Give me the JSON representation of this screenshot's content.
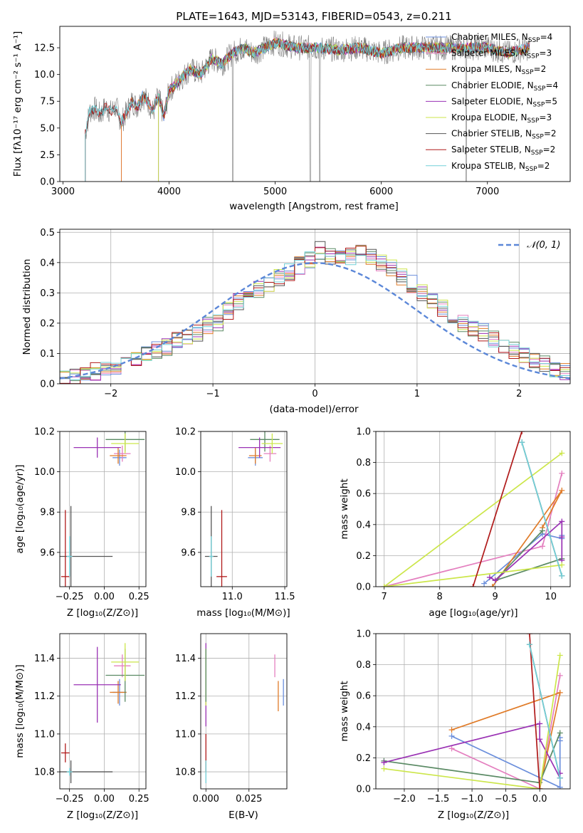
{
  "chart_data": [
    {
      "id": "spectrum",
      "type": "line",
      "title": "PLATE=1643, MJD=53143, FIBERID=0543, z=0.211",
      "xlabel": "wavelength [Angstrom, rest frame]",
      "ylabel": "Flux [fλ10⁻¹⁷ erg cm⁻² s⁻¹ A⁻¹]",
      "xlim": [
        2970,
        7780
      ],
      "ylim": [
        0,
        14.5
      ],
      "xticks": [
        "3000",
        "4000",
        "5000",
        "6000",
        "7000"
      ],
      "xtick_values": [
        3000,
        4000,
        5000,
        6000,
        7000
      ],
      "yticks": [
        "0.0",
        "2.5",
        "5.0",
        "7.5",
        "10.0",
        "12.5"
      ],
      "ytick_values": [
        0,
        2.5,
        5,
        7.5,
        10,
        12.5
      ],
      "grid": false,
      "legend_position": "top-right",
      "observed_spectrum": {
        "x": [
          3210,
          3250,
          3300,
          3350,
          3400,
          3450,
          3500,
          3550,
          3600,
          3650,
          3700,
          3750,
          3800,
          3850,
          3900,
          3950,
          4000,
          4100,
          4200,
          4300,
          4400,
          4500,
          4600,
          4700,
          4800,
          4900,
          5000,
          5200,
          5400,
          5600,
          5800,
          6000,
          6200,
          6400,
          6600,
          6800,
          7000,
          7200,
          7400
        ],
        "y": [
          4.5,
          6.5,
          6.8,
          6.2,
          7.0,
          6.5,
          7.0,
          5.5,
          6.5,
          7.5,
          7.0,
          8.0,
          7.5,
          6.5,
          8.0,
          6.0,
          8.5,
          9.5,
          10.5,
          10.0,
          11.5,
          11.0,
          12.0,
          12.5,
          12.0,
          12.5,
          13.0,
          12.5,
          12.5,
          12.3,
          12.5,
          12.0,
          12.5,
          12.5,
          12.5,
          12.5,
          12.5,
          12.0,
          12.5
        ]
      },
      "series": [
        {
          "name": "Chabrier MILES, N<sub>SSP</sub>=4",
          "color": "#6b8fdc",
          "start": 3550
        },
        {
          "name": "Salpeter MILES, N<sub>SSP</sub>=3",
          "color": "#e47fbf",
          "start": 3550
        },
        {
          "name": "Kroupa MILES, N<sub>SSP</sub>=2",
          "color": "#e07b28",
          "start": 3550
        },
        {
          "name": "Chabrier ELODIE, N<sub>SSP</sub>=4",
          "color": "#5a8a64",
          "start": 3900
        },
        {
          "name": "Salpeter ELODIE, N<sub>SSP</sub>=5",
          "color": "#9a32b4",
          "start": 3900
        },
        {
          "name": "Kroupa ELODIE, N<sub>SSP</sub>=3",
          "color": "#cce64a",
          "start": 3900
        },
        {
          "name": "Chabrier STELIB, N<sub>SSP</sub>=2",
          "color": "#555555",
          "start": 3210
        },
        {
          "name": "Salpeter STELIB, N<sub>SSP</sub>=2",
          "color": "#b01a1a",
          "start": 3210
        },
        {
          "name": "Kroupa STELIB, N<sub>SSP</sub>=2",
          "color": "#72d0d8",
          "start": 3210
        }
      ]
    },
    {
      "id": "residuals",
      "type": "line",
      "xlabel": "(data-model)/error",
      "ylabel": "Normed distribution",
      "xlim": [
        -2.5,
        2.5
      ],
      "ylim": [
        0,
        0.51
      ],
      "xticks": [
        "−2",
        "−1",
        "0",
        "1",
        "2"
      ],
      "xtick_values": [
        -2,
        -1,
        0,
        1,
        2
      ],
      "yticks": [
        "0.0",
        "0.1",
        "0.2",
        "0.3",
        "0.4",
        "0.5"
      ],
      "ytick_values": [
        0,
        0.1,
        0.2,
        0.3,
        0.4,
        0.5
      ],
      "grid": true,
      "legend": "𝒩(0, 1)",
      "legend_position": "top-right",
      "gaussian": {
        "mean": 0,
        "sigma": 1,
        "color": "#5b87d8"
      },
      "histogram_bins": [
        -2.5,
        -2.4,
        -2.3,
        -2.2,
        -2.1,
        -2.0,
        -1.9,
        -1.8,
        -1.7,
        -1.6,
        -1.5,
        -1.4,
        -1.3,
        -1.2,
        -1.1,
        -1.0,
        -0.9,
        -0.8,
        -0.7,
        -0.6,
        -0.5,
        -0.4,
        -0.3,
        -0.2,
        -0.1,
        0.0,
        0.1,
        0.2,
        0.3,
        0.4,
        0.5,
        0.6,
        0.7,
        0.8,
        0.9,
        1.0,
        1.1,
        1.2,
        1.3,
        1.4,
        1.5,
        1.6,
        1.7,
        1.8,
        1.9,
        2.0,
        2.1,
        2.2,
        2.3,
        2.4,
        2.5
      ],
      "histogram_base": [
        0.02,
        0.025,
        0.03,
        0.04,
        0.05,
        0.06,
        0.07,
        0.08,
        0.1,
        0.11,
        0.12,
        0.14,
        0.15,
        0.17,
        0.19,
        0.2,
        0.24,
        0.27,
        0.29,
        0.31,
        0.33,
        0.35,
        0.37,
        0.39,
        0.41,
        0.44,
        0.42,
        0.41,
        0.42,
        0.43,
        0.42,
        0.4,
        0.38,
        0.35,
        0.33,
        0.3,
        0.27,
        0.25,
        0.22,
        0.2,
        0.18,
        0.17,
        0.15,
        0.13,
        0.11,
        0.09,
        0.08,
        0.07,
        0.05,
        0.04
      ]
    },
    {
      "id": "age-vs-z",
      "type": "scatter",
      "xlabel": "Z [log₁₀(Z/Z⊙)]",
      "ylabel": "age  [log₁₀(age/yr)]",
      "xlim": [
        -0.32,
        0.3
      ],
      "ylim": [
        9.43,
        10.2
      ],
      "xticks": [
        "−0.25",
        "0.00",
        "0.25"
      ],
      "xtick_values": [
        -0.25,
        0,
        0.25
      ],
      "yticks": [
        "9.6",
        "9.8",
        "10.0",
        "10.2"
      ],
      "ytick_values": [
        9.6,
        9.8,
        10.0,
        10.2
      ],
      "grid": true,
      "points": [
        {
          "x": 0.11,
          "y": 10.07,
          "ex": 0.05,
          "ey": 0.04,
          "color": "#6b8fdc"
        },
        {
          "x": 0.13,
          "y": 10.09,
          "ex": 0.06,
          "ey": 0.04,
          "color": "#e47fbf"
        },
        {
          "x": 0.1,
          "y": 10.08,
          "ex": 0.06,
          "ey": 0.04,
          "color": "#e07b28"
        },
        {
          "x": 0.15,
          "y": 10.16,
          "ex": 0.14,
          "ey": 0.06,
          "color": "#5a8a64"
        },
        {
          "x": -0.05,
          "y": 10.12,
          "ex": 0.17,
          "ey": 0.05,
          "color": "#9a32b4"
        },
        {
          "x": 0.15,
          "y": 10.14,
          "ex": 0.1,
          "ey": 0.05,
          "color": "#cce64a"
        },
        {
          "x": -0.24,
          "y": 9.58,
          "ex": 0.3,
          "ey": 0.25,
          "color": "#555555"
        },
        {
          "x": -0.28,
          "y": 9.48,
          "ex": 0.03,
          "ey": 0.33,
          "color": "#b01a1a"
        },
        {
          "x": -0.25,
          "y": 9.58,
          "ex": 0.02,
          "ey": 0.1,
          "color": "#72d0d8"
        }
      ]
    },
    {
      "id": "age-vs-mass",
      "type": "scatter",
      "xlabel": "mass [log₁₀(M/M⊙)]",
      "ylabel": "",
      "xlim": [
        10.7,
        11.52
      ],
      "ylim": [
        9.43,
        10.2
      ],
      "xticks": [
        "11.0",
        "11.5"
      ],
      "xtick_values": [
        11.0,
        11.5
      ],
      "yticks": [
        "9.6",
        "9.8",
        "10.0",
        "10.2"
      ],
      "ytick_values": [
        9.6,
        9.8,
        10.0,
        10.2
      ],
      "grid": true,
      "points": [
        {
          "x": 11.22,
          "y": 10.07,
          "ex": 0.07,
          "ey": 0.04,
          "color": "#6b8fdc"
        },
        {
          "x": 11.36,
          "y": 10.09,
          "ex": 0.06,
          "ey": 0.04,
          "color": "#e47fbf"
        },
        {
          "x": 11.22,
          "y": 10.08,
          "ex": 0.06,
          "ey": 0.04,
          "color": "#e07b28"
        },
        {
          "x": 11.31,
          "y": 10.16,
          "ex": 0.14,
          "ey": 0.06,
          "color": "#5a8a64"
        },
        {
          "x": 11.26,
          "y": 10.12,
          "ex": 0.2,
          "ey": 0.05,
          "color": "#9a32b4"
        },
        {
          "x": 11.38,
          "y": 10.14,
          "ex": 0.1,
          "ey": 0.05,
          "color": "#cce64a"
        },
        {
          "x": 10.8,
          "y": 9.58,
          "ex": 0.06,
          "ey": 0.25,
          "color": "#555555"
        },
        {
          "x": 10.9,
          "y": 9.48,
          "ex": 0.05,
          "ey": 0.33,
          "color": "#b01a1a"
        },
        {
          "x": 10.8,
          "y": 9.58,
          "ex": 0.02,
          "ey": 0.1,
          "color": "#72d0d8"
        }
      ]
    },
    {
      "id": "weight-vs-age",
      "type": "line",
      "xlabel": "age  [log₁₀(age/yr)]",
      "ylabel": "mass weight",
      "xlim": [
        6.85,
        10.35
      ],
      "ylim": [
        0,
        1.0
      ],
      "xticks": [
        "7",
        "8",
        "9",
        "10"
      ],
      "xtick_values": [
        7,
        8,
        9,
        10
      ],
      "yticks": [
        "0.0",
        "0.2",
        "0.4",
        "0.6",
        "0.8",
        "1.0"
      ],
      "ytick_values": [
        0,
        0.2,
        0.4,
        0.6,
        0.8,
        1.0
      ],
      "grid": true,
      "series": [
        {
          "color": "#6b8fdc",
          "x": [
            8.8,
            9.85,
            10.2,
            10.2
          ],
          "y": [
            0.02,
            0.34,
            0.31,
            0.33
          ]
        },
        {
          "color": "#e47fbf",
          "x": [
            7.0,
            9.85,
            10.2
          ],
          "y": [
            0.0,
            0.26,
            0.73
          ]
        },
        {
          "color": "#e07b28",
          "x": [
            9.85,
            10.2,
            8.95
          ],
          "y": [
            0.38,
            0.62,
            0.0
          ]
        },
        {
          "color": "#5a8a64",
          "x": [
            10.2,
            9.0,
            9.85
          ],
          "y": [
            0.18,
            0.04,
            0.36
          ]
        },
        {
          "color": "#9a32b4",
          "x": [
            8.9,
            9.0,
            10.2,
            10.2,
            10.2
          ],
          "y": [
            0.06,
            0.04,
            0.42,
            0.17,
            0.32
          ]
        },
        {
          "color": "#cce64a",
          "x": [
            10.2,
            7.0,
            10.2
          ],
          "y": [
            0.86,
            0.0,
            0.14
          ]
        },
        {
          "color": "#555555",
          "x": [
            9.48,
            10.2
          ],
          "y": [
            0.93,
            0.07
          ]
        },
        {
          "color": "#b01a1a",
          "x": [
            8.6,
            9.48
          ],
          "y": [
            0.0,
            1.0
          ]
        },
        {
          "color": "#72d0d8",
          "x": [
            9.48,
            10.2
          ],
          "y": [
            0.93,
            0.07
          ]
        }
      ]
    },
    {
      "id": "mass-vs-z",
      "type": "scatter",
      "xlabel": "Z [log₁₀(Z/Z⊙)]",
      "ylabel": "mass [log₁₀(M/M⊙)]",
      "xlim": [
        -0.32,
        0.3
      ],
      "ylim": [
        10.71,
        11.53
      ],
      "xticks": [
        "−0.25",
        "0.00",
        "0.25"
      ],
      "xtick_values": [
        -0.25,
        0,
        0.25
      ],
      "yticks": [
        "10.8",
        "11.0",
        "11.2",
        "11.4"
      ],
      "ytick_values": [
        10.8,
        11.0,
        11.2,
        11.4
      ],
      "grid": true,
      "points": [
        {
          "x": 0.11,
          "y": 11.22,
          "ex": 0.05,
          "ey": 0.07,
          "color": "#6b8fdc"
        },
        {
          "x": 0.13,
          "y": 11.36,
          "ex": 0.06,
          "ey": 0.06,
          "color": "#e47fbf"
        },
        {
          "x": 0.1,
          "y": 11.22,
          "ex": 0.06,
          "ey": 0.06,
          "color": "#e07b28"
        },
        {
          "x": 0.15,
          "y": 11.31,
          "ex": 0.14,
          "ey": 0.14,
          "color": "#5a8a64"
        },
        {
          "x": -0.05,
          "y": 11.26,
          "ex": 0.17,
          "ey": 0.2,
          "color": "#9a32b4"
        },
        {
          "x": 0.15,
          "y": 11.38,
          "ex": 0.1,
          "ey": 0.1,
          "color": "#cce64a"
        },
        {
          "x": -0.24,
          "y": 10.8,
          "ex": 0.3,
          "ey": 0.06,
          "color": "#555555"
        },
        {
          "x": -0.28,
          "y": 10.9,
          "ex": 0.03,
          "ey": 0.05,
          "color": "#b01a1a"
        },
        {
          "x": -0.25,
          "y": 10.8,
          "ex": 0.02,
          "ey": 0.02,
          "color": "#72d0d8"
        }
      ]
    },
    {
      "id": "mass-vs-ebv",
      "type": "scatter",
      "xlabel": "E(B-V)",
      "ylabel": "",
      "xlim": [
        -0.003,
        0.047
      ],
      "ylim": [
        10.71,
        11.53
      ],
      "xticks": [
        "0.000",
        "0.025"
      ],
      "xtick_values": [
        0,
        0.025
      ],
      "yticks": [
        "10.8",
        "11.0",
        "11.2",
        "11.4"
      ],
      "ytick_values": [
        10.8,
        11.0,
        11.2,
        11.4
      ],
      "grid": true,
      "points": [
        {
          "x": 0.0,
          "y": 11.26,
          "ex": 0,
          "ey": 0.22,
          "color": "#9a32b4"
        },
        {
          "x": 0.0,
          "y": 11.3,
          "ex": 0,
          "ey": 0.15,
          "color": "#cce64a"
        },
        {
          "x": 0.0,
          "y": 10.9,
          "ex": 0,
          "ey": 0.1,
          "color": "#b01a1a"
        },
        {
          "x": 0.0,
          "y": 10.8,
          "ex": 0,
          "ey": 0.06,
          "color": "#72d0d8"
        },
        {
          "x": 0.0,
          "y": 11.31,
          "ex": 0,
          "ey": 0.14,
          "color": "#5a8a64"
        },
        {
          "x": 0.04,
          "y": 11.36,
          "ex": 0,
          "ey": 0.06,
          "color": "#e47fbf"
        },
        {
          "x": 0.042,
          "y": 11.2,
          "ex": 0,
          "ey": 0.08,
          "color": "#e07b28"
        },
        {
          "x": 0.045,
          "y": 11.22,
          "ex": 0,
          "ey": 0.07,
          "color": "#6b8fdc"
        }
      ]
    },
    {
      "id": "weight-vs-z",
      "type": "line",
      "xlabel": "Z [log₁₀(Z/Z⊙)]",
      "ylabel": "mass weight",
      "xlim": [
        -2.42,
        0.45
      ],
      "ylim": [
        0,
        1.0
      ],
      "xticks": [
        "−2.0",
        "−1.5",
        "−1.0",
        "−0.5",
        "0.0"
      ],
      "xtick_values": [
        -2.0,
        -1.5,
        -1.0,
        -0.5,
        0.0
      ],
      "yticks": [
        "0.0",
        "0.2",
        "0.4",
        "0.6",
        "0.8",
        "1.0"
      ],
      "ytick_values": [
        0,
        0.2,
        0.4,
        0.6,
        0.8,
        1.0
      ],
      "grid": true,
      "series": [
        {
          "color": "#6b8fdc",
          "x": [
            -1.3,
            0.3,
            0.3,
            0.3
          ],
          "y": [
            0.34,
            0.01,
            0.31,
            0.33
          ]
        },
        {
          "color": "#e47fbf",
          "x": [
            -1.3,
            0.0,
            0.3
          ],
          "y": [
            0.26,
            0.0,
            0.73
          ]
        },
        {
          "color": "#e07b28",
          "x": [
            -1.3,
            0.3,
            0.0
          ],
          "y": [
            0.38,
            0.62,
            0.0
          ]
        },
        {
          "color": "#5a8a64",
          "x": [
            -2.3,
            0.0,
            0.3
          ],
          "y": [
            0.18,
            0.04,
            0.36
          ]
        },
        {
          "color": "#9a32b4",
          "x": [
            -2.3,
            0.0,
            0.0,
            0.3,
            0.3
          ],
          "y": [
            0.17,
            0.42,
            0.32,
            0.07,
            0.1
          ]
        },
        {
          "color": "#cce64a",
          "x": [
            -2.3,
            0.0,
            0.3
          ],
          "y": [
            0.13,
            0.0,
            0.86
          ]
        },
        {
          "color": "#555555",
          "x": [
            -0.15,
            0.3
          ],
          "y": [
            0.93,
            0.07
          ]
        },
        {
          "color": "#b01a1a",
          "x": [
            -0.15,
            0.0
          ],
          "y": [
            1.0,
            0.0
          ]
        },
        {
          "color": "#72d0d8",
          "x": [
            -0.15,
            0.3
          ],
          "y": [
            0.93,
            0.07
          ]
        }
      ]
    }
  ]
}
